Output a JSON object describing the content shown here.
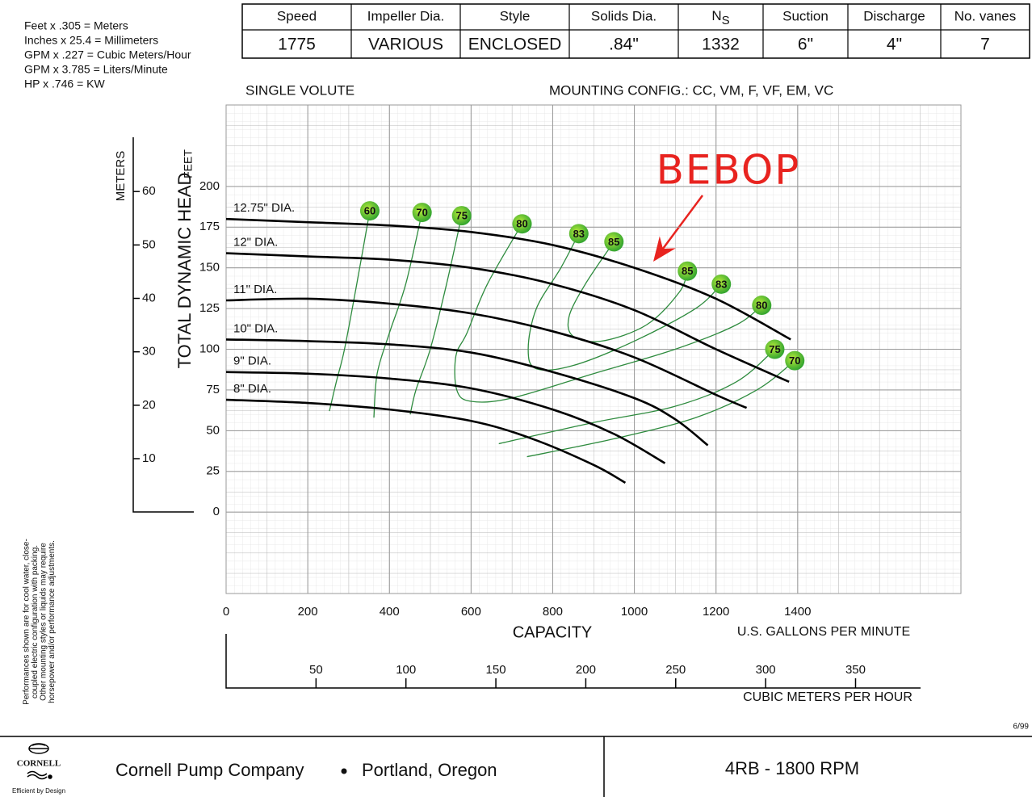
{
  "header": {
    "conversions": [
      "Feet x .305 = Meters",
      "Inches x 25.4 = Millimeters",
      "GPM x .227 = Cubic Meters/Hour",
      "GPM x 3.785 = Liters/Minute",
      "HP x .746 = KW"
    ],
    "columns": [
      "Speed",
      "Impeller Dia.",
      "Style",
      "Solids Dia.",
      {
        "text": "N",
        "subscript": "S"
      },
      "Suction",
      "Discharge",
      "No. vanes"
    ],
    "values": [
      1775,
      "VARIOUS",
      "ENCLOSED",
      ".84\"",
      1332,
      "6\"",
      "4\"",
      7
    ]
  },
  "chart_data": {
    "type": "line",
    "subtitle_left": "SINGLE VOLUTE",
    "subtitle_right": "MOUNTING CONFIG.:  CC,  VM,  F,  VF,  EM,  VC",
    "ylabel": "TOTAL DYNAMIC HEAD",
    "ylabel_unit": "FEET",
    "y2label": "METERS",
    "xlabel": "CAPACITY",
    "xlabel_unit": "U.S. GALLONS PER MINUTE",
    "x2label": "CUBIC METERS PER HOUR",
    "annotation": "BEBOP",
    "xlim": [
      0,
      1800
    ],
    "xticks": [
      0,
      200,
      400,
      600,
      800,
      1000,
      1200,
      1400
    ],
    "ylim": [
      -50,
      250
    ],
    "yticks": [
      0,
      25,
      50,
      75,
      100,
      125,
      150,
      175,
      200
    ],
    "y2lim": [
      -15.24,
      76.2
    ],
    "y2ticks": [
      10,
      20,
      30,
      40,
      50,
      60
    ],
    "x2lim": [
      0,
      408.6
    ],
    "x2ticks": [
      50,
      100,
      150,
      200,
      250,
      300,
      350
    ],
    "grid": true,
    "series": [
      {
        "name": "12.75\" DIA.",
        "color": "#000000",
        "x": [
          0,
          200,
          400,
          600,
          800,
          1000,
          1200,
          1383
        ],
        "y": [
          180,
          178,
          176,
          172,
          164,
          150,
          131,
          106
        ]
      },
      {
        "name": "12\" DIA.",
        "color": "#000000",
        "x": [
          0,
          200,
          400,
          600,
          800,
          1000,
          1200,
          1379
        ],
        "y": [
          159,
          157,
          155,
          150,
          140,
          124,
          100,
          80
        ]
      },
      {
        "name": "11\" DIA.",
        "color": "#000000",
        "x": [
          0,
          200,
          400,
          600,
          800,
          1000,
          1200,
          1275
        ],
        "y": [
          130,
          131,
          128,
          122,
          111,
          95,
          72,
          64
        ]
      },
      {
        "name": "10\" DIA.",
        "color": "#000000",
        "x": [
          0,
          200,
          400,
          600,
          800,
          1000,
          1100,
          1180
        ],
        "y": [
          106,
          105,
          103,
          98,
          86,
          70,
          57,
          41
        ]
      },
      {
        "name": "9\" DIA.",
        "color": "#000000",
        "x": [
          0,
          200,
          400,
          600,
          800,
          950,
          1075
        ],
        "y": [
          86,
          85,
          82,
          76,
          63,
          48,
          30
        ]
      },
      {
        "name": "8\" DIA.",
        "color": "#000000",
        "x": [
          0,
          200,
          400,
          600,
          750,
          900,
          978
        ],
        "y": [
          69,
          67,
          63,
          56,
          45,
          29,
          18
        ]
      }
    ],
    "efficiency_color": "#2e8b3e",
    "efficiency_curves": [
      {
        "x": [
          352,
          320,
          290,
          270,
          253
        ],
        "y": [
          185,
          140,
          100,
          80,
          62
        ]
      },
      {
        "x": [
          480,
          440,
          400,
          370,
          362
        ],
        "y": [
          184,
          140,
          110,
          85,
          58
        ]
      },
      {
        "x": [
          577,
          540,
          500,
          465,
          451
        ],
        "y": [
          182,
          140,
          100,
          75,
          60
        ]
      },
      {
        "x": [
          725,
          640,
          590,
          563,
          565,
          600,
          700,
          900,
          1100,
          1250,
          1312
        ],
        "y": [
          177,
          140,
          110,
          96,
          75,
          68,
          70,
          85,
          100,
          115,
          127
        ]
      },
      {
        "x": [
          864,
          820,
          760,
          740,
          760,
          850,
          1000,
          1150,
          1213
        ],
        "y": [
          171,
          150,
          125,
          100,
          88,
          90,
          105,
          125,
          140
        ]
      },
      {
        "x": [
          950,
          880,
          840,
          850,
          920,
          1030,
          1110,
          1130
        ],
        "y": [
          166,
          140,
          120,
          108,
          105,
          115,
          135,
          148
        ]
      },
      {
        "x": [
          668,
          900,
          1100,
          1250,
          1344
        ],
        "y": [
          42,
          55,
          65,
          80,
          100
        ]
      },
      {
        "x": [
          737,
          950,
          1150,
          1300,
          1393
        ],
        "y": [
          34,
          45,
          58,
          75,
          93
        ]
      }
    ],
    "efficiency_labels": [
      {
        "value": 60,
        "x": 352,
        "y": 185
      },
      {
        "value": 70,
        "x": 480,
        "y": 184
      },
      {
        "value": 75,
        "x": 577,
        "y": 182
      },
      {
        "value": 80,
        "x": 725,
        "y": 177
      },
      {
        "value": 83,
        "x": 864,
        "y": 171
      },
      {
        "value": 85,
        "x": 950,
        "y": 166
      },
      {
        "value": 85,
        "x": 1130,
        "y": 148
      },
      {
        "value": 83,
        "x": 1213,
        "y": 140
      },
      {
        "value": 80,
        "x": 1312,
        "y": 127
      },
      {
        "value": 75,
        "x": 1344,
        "y": 100
      },
      {
        "value": 70,
        "x": 1393,
        "y": 93
      }
    ]
  },
  "side_note": [
    "Performances shown are for cool water, close-",
    "coupled electric configuration with packing.",
    "Other mounting styles or liquids may require",
    "horsepower and/or performance adjustments."
  ],
  "footer": {
    "logo": "CORNELL",
    "tagline": "Efficient by Design",
    "company": "Cornell Pump Company",
    "location": "Portland, Oregon",
    "model": "4RB - 1800 RPM",
    "date": "6/99"
  }
}
